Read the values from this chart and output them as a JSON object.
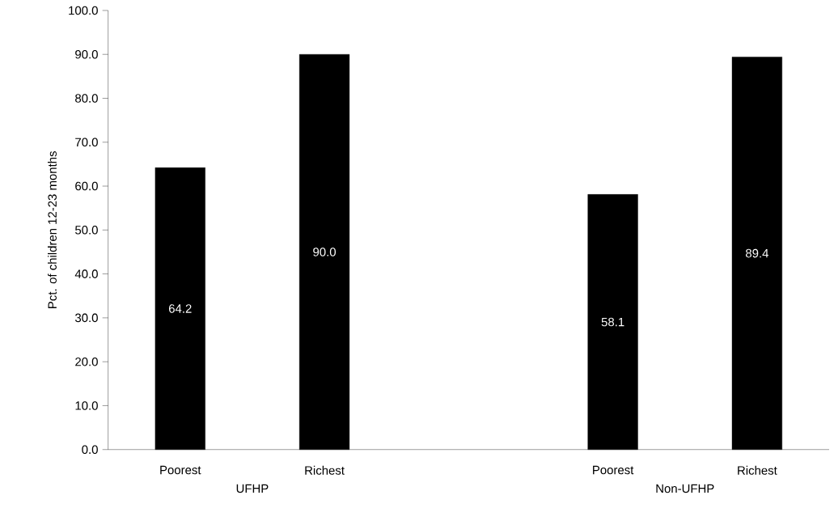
{
  "chart_data": {
    "type": "bar",
    "ylabel": "Pct. of children 12-23 months",
    "categories": [
      "Poorest",
      "Richest",
      null,
      "Poorest",
      "Richest"
    ],
    "values": [
      64.2,
      90.0,
      null,
      58.1,
      89.4
    ],
    "value_labels": [
      "64.2",
      "90.0",
      null,
      "58.1",
      "89.4"
    ],
    "color": "#000000",
    "ylim": [
      0,
      100
    ],
    "yticks": [
      {
        "value": 0,
        "label": "0.0"
      },
      {
        "value": 10,
        "label": "10.0"
      },
      {
        "value": 20,
        "label": "20.0"
      },
      {
        "value": 30,
        "label": "30.0"
      },
      {
        "value": 40,
        "label": "40.0"
      },
      {
        "value": 50,
        "label": "50.0"
      },
      {
        "value": 60,
        "label": "60.0"
      },
      {
        "value": 70,
        "label": "70.0"
      },
      {
        "value": 80,
        "label": "80.0"
      },
      {
        "value": 90,
        "label": "90.0"
      },
      {
        "value": 100,
        "label": "100.0"
      }
    ],
    "annotations": [
      "UFHP",
      "Non-UFHP"
    ],
    "grid": false
  }
}
